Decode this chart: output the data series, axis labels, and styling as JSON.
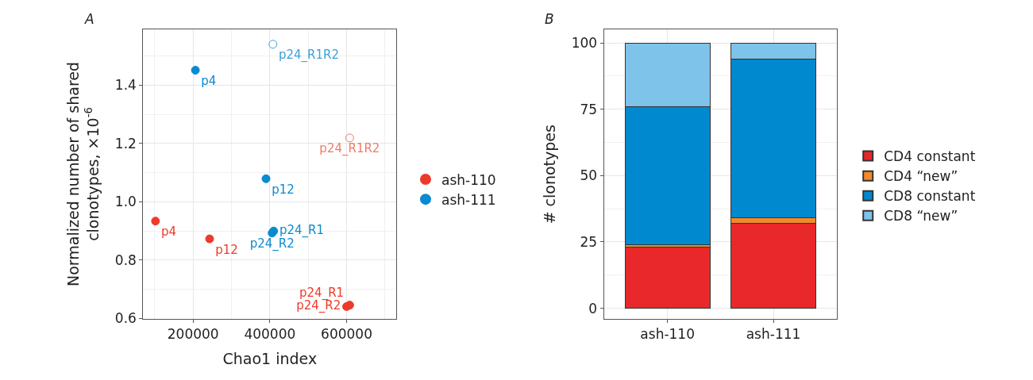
{
  "chart_data": [
    {
      "type": "scatter",
      "title": "A",
      "xlabel": "Chao1 index",
      "ylabel": "Normalized number of shared\nclonotypes, ×10$^{-6}$",
      "xlim": [
        70000,
        730000
      ],
      "ylim": [
        0.6,
        1.59
      ],
      "xticks": [
        200000,
        400000,
        600000
      ],
      "yticks": [
        0.6,
        0.8,
        {
          "value": 1.0,
          "label": "1.0"
        },
        1.2,
        1.4
      ],
      "grid": true,
      "legend": "right",
      "series": [
        {
          "name": "ash-110",
          "color": "#ee3a2a",
          "marker": "circle",
          "x": [
            102000,
            243000,
            608000,
            600000
          ],
          "values": [
            0.934,
            0.873,
            0.646,
            0.641
          ],
          "value_labels": [
            "p4",
            "p12",
            "p24_R1",
            "p24_R2"
          ]
        },
        {
          "name": "ash-111",
          "color": "#0a8ad0",
          "marker": "circle",
          "x": [
            206000,
            390000,
            410000,
            406000
          ],
          "values": [
            1.451,
            1.079,
            0.9,
            0.893
          ],
          "value_labels": [
            "p4",
            "p12",
            "p24_R1",
            "p24_R2"
          ]
        },
        {
          "color": "#f07a66",
          "marker": "circle-open",
          "x": [
            608000
          ],
          "values": [
            1.219
          ],
          "value_labels": [
            "p24_R1R2"
          ]
        },
        {
          "color": "#3aa0dc",
          "marker": "circle-open",
          "x": [
            408000
          ],
          "values": [
            1.54
          ],
          "value_labels": [
            "p24_R1R2"
          ]
        }
      ]
    },
    {
      "type": "bar",
      "title": "B",
      "ylabel": "# clonotypes",
      "categories": [
        "ash-110",
        "ash-111"
      ],
      "stacked": true,
      "ylim": [
        -4,
        105
      ],
      "yticks": [
        0,
        25,
        50,
        75,
        100
      ],
      "grid": true,
      "legend": "right",
      "series": [
        {
          "name": "CD4 constant",
          "color": "#e8282a",
          "values": [
            23,
            32
          ]
        },
        {
          "name": "CD4 “new”",
          "color": "#f28a2a",
          "values": [
            1,
            2
          ]
        },
        {
          "name": "CD8 constant",
          "color": "#0089cf",
          "values": [
            52,
            60
          ]
        },
        {
          "name": "CD8 “new”",
          "color": "#7dc3ea",
          "values": [
            24,
            6
          ]
        }
      ]
    }
  ]
}
